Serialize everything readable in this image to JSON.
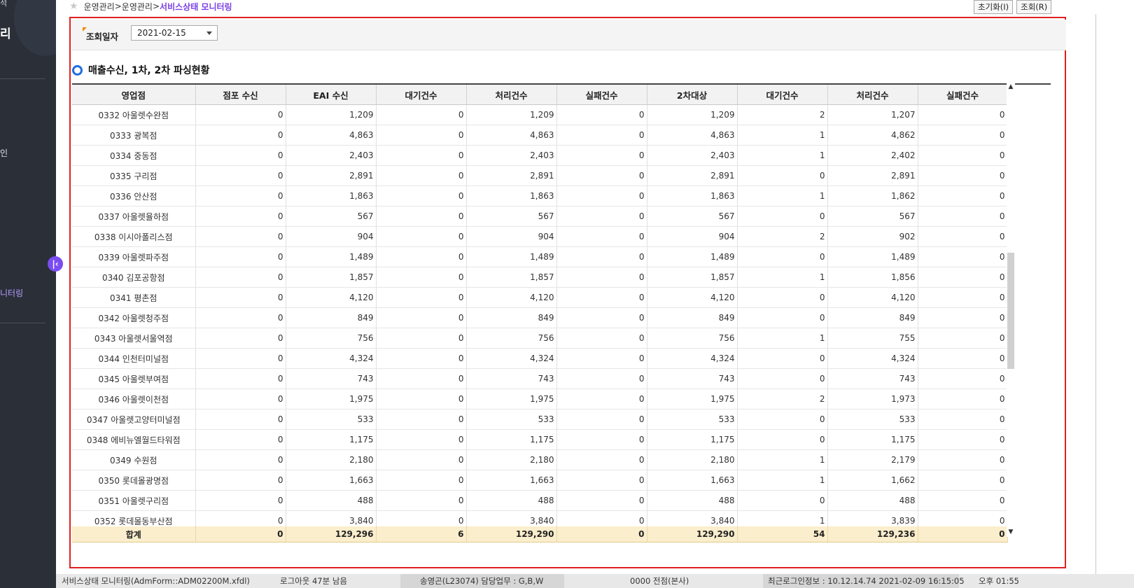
{
  "sidebar": {
    "top_fragment": "석",
    "title_fragment": "리",
    "login_fragment": "인",
    "monitoring_fragment": "니터링"
  },
  "breadcrumb": {
    "part1": "운영관리",
    "part2": "운영관리",
    "current": "서비스상태 모니터링",
    "separator": ">"
  },
  "buttons": {
    "reset": "초기화(I)",
    "search": "조회(R)"
  },
  "search": {
    "date_label": "조회일자",
    "date_value": "2021-02-15"
  },
  "section": {
    "title": "매출수신, 1차, 2차 파싱현황"
  },
  "grid": {
    "columns": [
      "영업점",
      "점포 수신",
      "EAI 수신",
      "대기건수",
      "처리건수",
      "실패건수",
      "2차대상",
      "대기건수",
      "처리건수",
      "실패건수"
    ],
    "rows": [
      [
        "0332 아울렛수완점",
        "0",
        "1,209",
        "0",
        "1,209",
        "0",
        "1,209",
        "2",
        "1,207",
        "0"
      ],
      [
        "0333 광복점",
        "0",
        "4,863",
        "0",
        "4,863",
        "0",
        "4,863",
        "1",
        "4,862",
        "0"
      ],
      [
        "0334 중동점",
        "0",
        "2,403",
        "0",
        "2,403",
        "0",
        "2,403",
        "1",
        "2,402",
        "0"
      ],
      [
        "0335 구리점",
        "0",
        "2,891",
        "0",
        "2,891",
        "0",
        "2,891",
        "0",
        "2,891",
        "0"
      ],
      [
        "0336 안산점",
        "0",
        "1,863",
        "0",
        "1,863",
        "0",
        "1,863",
        "1",
        "1,862",
        "0"
      ],
      [
        "0337 아울렛율하점",
        "0",
        "567",
        "0",
        "567",
        "0",
        "567",
        "0",
        "567",
        "0"
      ],
      [
        "0338 이시아폴리스점",
        "0",
        "904",
        "0",
        "904",
        "0",
        "904",
        "2",
        "902",
        "0"
      ],
      [
        "0339 아울렛파주점",
        "0",
        "1,489",
        "0",
        "1,489",
        "0",
        "1,489",
        "0",
        "1,489",
        "0"
      ],
      [
        "0340 김포공항점",
        "0",
        "1,857",
        "0",
        "1,857",
        "0",
        "1,857",
        "1",
        "1,856",
        "0"
      ],
      [
        "0341 평촌점",
        "0",
        "4,120",
        "0",
        "4,120",
        "0",
        "4,120",
        "0",
        "4,120",
        "0"
      ],
      [
        "0342 아울렛청주점",
        "0",
        "849",
        "0",
        "849",
        "0",
        "849",
        "0",
        "849",
        "0"
      ],
      [
        "0343 아울렛서울역점",
        "0",
        "756",
        "0",
        "756",
        "0",
        "756",
        "1",
        "755",
        "0"
      ],
      [
        "0344 인천터미널점",
        "0",
        "4,324",
        "0",
        "4,324",
        "0",
        "4,324",
        "0",
        "4,324",
        "0"
      ],
      [
        "0345 아울렛부여점",
        "0",
        "743",
        "0",
        "743",
        "0",
        "743",
        "0",
        "743",
        "0"
      ],
      [
        "0346 아울렛이천점",
        "0",
        "1,975",
        "0",
        "1,975",
        "0",
        "1,975",
        "2",
        "1,973",
        "0"
      ],
      [
        "0347 아울렛고양터미널점",
        "0",
        "533",
        "0",
        "533",
        "0",
        "533",
        "0",
        "533",
        "0"
      ],
      [
        "0348 에비뉴엘월드타워점",
        "0",
        "1,175",
        "0",
        "1,175",
        "0",
        "1,175",
        "0",
        "1,175",
        "0"
      ],
      [
        "0349 수원점",
        "0",
        "2,180",
        "0",
        "2,180",
        "0",
        "2,180",
        "1",
        "2,179",
        "0"
      ],
      [
        "0350 롯데몰광명점",
        "0",
        "1,663",
        "0",
        "1,663",
        "0",
        "1,663",
        "1",
        "1,662",
        "0"
      ],
      [
        "0351 아울렛구리점",
        "0",
        "488",
        "0",
        "488",
        "0",
        "488",
        "0",
        "488",
        "0"
      ],
      [
        "0352 롯데몰동부산점",
        "0",
        "3,840",
        "0",
        "3,840",
        "0",
        "3,840",
        "1",
        "3,839",
        "0"
      ]
    ],
    "summary": [
      "합계",
      "0",
      "129,296",
      "6",
      "129,290",
      "0",
      "129,290",
      "54",
      "129,236",
      "0"
    ]
  },
  "status_bar": {
    "screen": "서비스상태 모니터링(AdmForm::ADM02200M.xfdl)",
    "logout": "로그아웃 47분 남음",
    "user": "송영곤(L23074) 담당업무 : G,B,W",
    "store": "0000 전점(본사)",
    "last_login": "최근로그인정보 : 10.12.14.74 2021-02-09 16:15:05",
    "time": "오후 01:55"
  },
  "colors": {
    "sidebar": "#2b2f38",
    "accent": "#7b3fe4",
    "frame_border": "#e02020",
    "summary_bg": "#fbeecd",
    "bullet": "#1f6fe0"
  },
  "icons": {
    "favorite": "star-icon",
    "collapse": "collapse-left-icon",
    "dropdown": "chevron-down-icon",
    "bullet": "ring-bullet-icon"
  }
}
